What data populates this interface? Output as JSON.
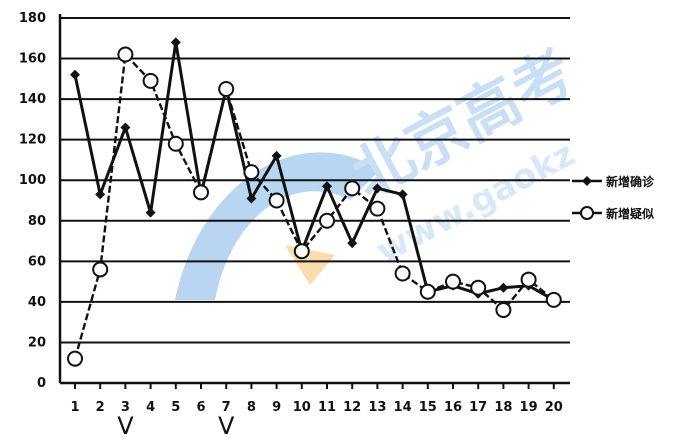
{
  "chart_data": {
    "type": "line",
    "categories": [
      "1",
      "2",
      "3",
      "4",
      "5",
      "6",
      "7",
      "8",
      "9",
      "10",
      "11",
      "12",
      "13",
      "14",
      "15",
      "16",
      "17",
      "18",
      "19",
      "20"
    ],
    "series": [
      {
        "name": "新增确诊",
        "marker": "diamond",
        "color": "#111111",
        "values": [
          152,
          93,
          126,
          84,
          168,
          93,
          145,
          91,
          112,
          65,
          97,
          69,
          96,
          93,
          45,
          48,
          44,
          47,
          48,
          41
        ]
      },
      {
        "name": "新增疑似",
        "marker": "circle",
        "color": "#111111",
        "values": [
          12,
          56,
          162,
          149,
          118,
          94,
          145,
          104,
          90,
          65,
          80,
          96,
          86,
          54,
          45,
          50,
          47,
          36,
          51,
          41
        ]
      }
    ],
    "ylim": [
      0,
      180
    ],
    "yticks": [
      0,
      20,
      40,
      60,
      80,
      100,
      120,
      140,
      160,
      180
    ],
    "grid": true,
    "legend_position": "right"
  },
  "annotations": {
    "handwritten_marks": [
      "V",
      "V"
    ]
  },
  "watermark": {
    "text": "北京高考",
    "url_text": "www.gaokz"
  }
}
